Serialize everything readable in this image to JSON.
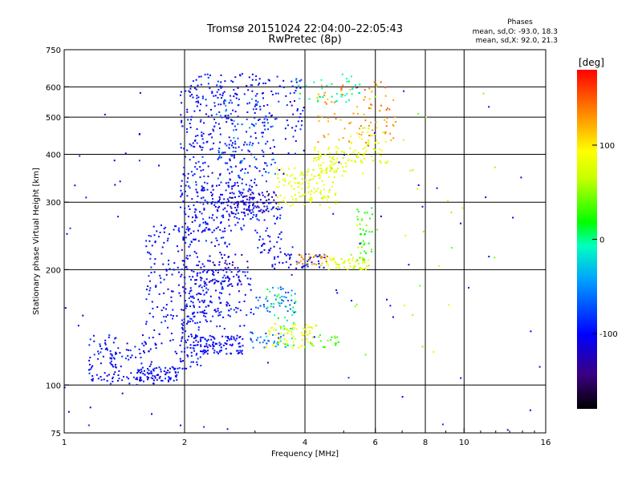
{
  "chart_data": {
    "type": "scatter",
    "title": "Tromsø 20151024 22:04:00–22:05:43",
    "subtitle": "RwPretec (8p)",
    "stats": {
      "heading": "Phases",
      "line1": "mean, sd,O: -93.0, 18.3",
      "line2": "mean, sd,X:  92.0, 21.3"
    },
    "xlabel": "Frequency [MHz]",
    "ylabel": "Stationary phase Virtual Height [km]",
    "xscale": "log",
    "yscale": "log",
    "xlim": [
      1,
      16
    ],
    "ylim": [
      75,
      750
    ],
    "xticks": [
      1,
      2,
      4,
      6,
      8,
      10,
      16
    ],
    "xtick_labels": [
      "1",
      "2",
      "4",
      "6",
      "8",
      "10",
      "16"
    ],
    "x_gridlines": [
      2,
      4,
      6,
      8,
      10
    ],
    "yticks": [
      75,
      100,
      200,
      300,
      400,
      500,
      600,
      750
    ],
    "ytick_labels": [
      "75",
      "100",
      "200",
      "300",
      "400",
      "500",
      "600",
      "750"
    ],
    "y_gridlines": [
      100,
      200,
      300,
      400,
      500,
      600
    ],
    "colorbar": {
      "label": "[deg]",
      "range": [
        -180,
        180
      ],
      "ticks": [
        100,
        0,
        -100
      ],
      "tick_labels": [
        "100",
        "0",
        "-100"
      ]
    },
    "series": [
      {
        "phase": -100,
        "clusters": [
          {
            "x": [
              1.15,
              1.35
            ],
            "y": [
              102,
              135
            ],
            "n": 60
          },
          {
            "x": [
              1.3,
              1.7
            ],
            "y": [
              100,
              130
            ],
            "n": 70
          },
          {
            "x": [
              1.5,
              1.95
            ],
            "y": [
              102,
              112
            ],
            "n": 80
          },
          {
            "x": [
              1.6,
              2.0
            ],
            "y": [
              120,
              260
            ],
            "n": 120
          },
          {
            "x": [
              1.95,
              2.2
            ],
            "y": [
              110,
              640
            ],
            "n": 260
          },
          {
            "x": [
              2.1,
              2.8
            ],
            "y": [
              120,
              135
            ],
            "n": 110
          },
          {
            "x": [
              2.2,
              3.0
            ],
            "y": [
              150,
              200
            ],
            "n": 80
          },
          {
            "x": [
              2.0,
              2.6
            ],
            "y": [
              140,
              260
            ],
            "n": 110
          },
          {
            "x": [
              2.2,
              3.0
            ],
            "y": [
              250,
              340
            ],
            "n": 160
          },
          {
            "x": [
              2.2,
              3.2
            ],
            "y": [
              330,
              650
            ],
            "n": 220
          },
          {
            "x": [
              3.0,
              4.0
            ],
            "y": [
              400,
              640
            ],
            "n": 70
          },
          {
            "x": [
              3.0,
              3.5
            ],
            "y": [
              220,
              300
            ],
            "n": 60
          },
          {
            "x": [
              3.3,
              4.5
            ],
            "y": [
              200,
              220
            ],
            "n": 50
          }
        ]
      },
      {
        "phase": -125,
        "clusters": [
          {
            "x": [
              2.6,
              3.4
            ],
            "y": [
              280,
              320
            ],
            "n": 70
          },
          {
            "x": [
              2.3,
              2.9
            ],
            "y": [
              180,
              220
            ],
            "n": 40
          }
        ]
      },
      {
        "phase": -65,
        "clusters": [
          {
            "x": [
              2.4,
              3.4
            ],
            "y": [
              340,
              560
            ],
            "n": 70
          },
          {
            "x": [
              3.0,
              3.8
            ],
            "y": [
              155,
              180
            ],
            "n": 40
          },
          {
            "x": [
              2.9,
              3.6
            ],
            "y": [
              125,
              138
            ],
            "n": 30
          }
        ]
      },
      {
        "phase": 0,
        "clusters": [
          {
            "x": [
              3.2,
              3.8
            ],
            "y": [
              125,
              180
            ],
            "n": 40
          },
          {
            "x": [
              3.8,
              5.5
            ],
            "y": [
              540,
              650
            ],
            "n": 40
          }
        ]
      },
      {
        "phase": 80,
        "clusters": [
          {
            "x": [
              3.2,
              4.3
            ],
            "y": [
              125,
              145
            ],
            "n": 70
          },
          {
            "x": [
              3.4,
              4.8
            ],
            "y": [
              290,
              370
            ],
            "n": 130
          },
          {
            "x": [
              4.2,
              5.6
            ],
            "y": [
              350,
              420
            ],
            "n": 70
          },
          {
            "x": [
              4.5,
              5.8
            ],
            "y": [
              200,
              215
            ],
            "n": 50
          },
          {
            "x": [
              5.2,
              6.5
            ],
            "y": [
              380,
              470
            ],
            "n": 50
          }
        ]
      },
      {
        "phase": 130,
        "clusters": [
          {
            "x": [
              5.5,
              6.8
            ],
            "y": [
              420,
              620
            ],
            "n": 50
          },
          {
            "x": [
              4.2,
              5.5
            ],
            "y": [
              430,
              620
            ],
            "n": 40
          },
          {
            "x": [
              3.8,
              4.6
            ],
            "y": [
              205,
              220
            ],
            "n": 30
          }
        ]
      },
      {
        "phase": 30,
        "clusters": [
          {
            "x": [
              5.4,
              5.9
            ],
            "y": [
              200,
              290
            ],
            "n": 40
          },
          {
            "x": [
              4.0,
              5.0
            ],
            "y": [
              125,
              135
            ],
            "n": 20
          }
        ]
      },
      {
        "phase": -100,
        "clusters": [
          {
            "x": [
              1.0,
              16.0
            ],
            "y": [
              75,
              650
            ],
            "n": 90
          }
        ]
      },
      {
        "phase": 60,
        "clusters": [
          {
            "x": [
              5.0,
              12.0
            ],
            "y": [
              120,
              620
            ],
            "n": 35
          }
        ]
      }
    ]
  }
}
